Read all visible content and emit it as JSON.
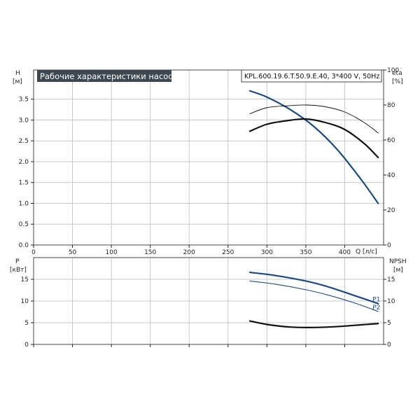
{
  "chart_data": {
    "type": "line",
    "title": "Рабочие характеристики насоса",
    "model": "KPL.600.19.6.T.50.9.E.40, 3*400 V, 50Hz",
    "colors": {
      "head": "#1a4a86",
      "eff": "#111111",
      "power": "#1a4a86",
      "npsh": "#111111",
      "title_bg": "#3c4750"
    },
    "top": {
      "left_axis": {
        "label": "H",
        "unit": "[м]",
        "range": [
          0,
          4.2
        ],
        "ticks": [
          0,
          0.5,
          1.0,
          1.5,
          2.0,
          2.5,
          3.0,
          3.5
        ],
        "tick_labels": [
          "0.0",
          "0.5",
          "1.0",
          "1.5",
          "2.0",
          "2.5",
          "3.0",
          "3.5"
        ]
      },
      "right_axis": {
        "label": "eta",
        "unit": "[%]",
        "range": [
          0,
          100
        ],
        "ticks": [
          0,
          20,
          40,
          60,
          80,
          100
        ],
        "tick_labels": [
          "0",
          "20",
          "40",
          "60",
          "80",
          "100"
        ]
      },
      "x_axis": {
        "label": "Q [л/с]",
        "range": [
          0,
          450
        ],
        "ticks": [
          0,
          50,
          100,
          150,
          200,
          250,
          300,
          350,
          400
        ],
        "tick_labels": [
          "0",
          "50",
          "100",
          "150",
          "200",
          "250",
          "300",
          "350",
          "400"
        ]
      },
      "series": [
        {
          "key": "head",
          "axis": "left",
          "width": 2.2,
          "x": [
            278,
            300,
            330,
            360,
            390,
            420,
            443
          ],
          "y": [
            3.7,
            3.55,
            3.25,
            2.85,
            2.3,
            1.6,
            1.0
          ]
        },
        {
          "key": "eff",
          "axis": "right",
          "width": 0.9,
          "x": [
            278,
            300,
            325,
            350,
            375,
            400,
            425,
            443
          ],
          "y": [
            75,
            78.5,
            79.5,
            80,
            79,
            76,
            70,
            64
          ]
        },
        {
          "key": "eff",
          "axis": "right",
          "width": 2.2,
          "x": [
            278,
            300,
            325,
            350,
            375,
            400,
            425,
            443
          ],
          "y": [
            65,
            69,
            71,
            72,
            70,
            66,
            58,
            50
          ]
        }
      ]
    },
    "bottom": {
      "left_axis": {
        "label": "P",
        "unit": "[кВт]",
        "range": [
          0,
          20
        ],
        "ticks": [
          0,
          5,
          10,
          15
        ],
        "tick_labels": [
          "0",
          "5",
          "10",
          "15"
        ]
      },
      "right_axis": {
        "label": "NPSH",
        "unit": "[м]",
        "range": [
          0,
          20
        ],
        "ticks": [
          0,
          5,
          10,
          15
        ],
        "tick_labels": [
          "0",
          "5",
          "10",
          "15"
        ]
      },
      "x_axis": {
        "range": [
          0,
          450
        ]
      },
      "series": [
        {
          "key": "power",
          "name": "P1",
          "axis": "left",
          "width": 2.2,
          "x": [
            278,
            310,
            350,
            380,
            410,
            443
          ],
          "y": [
            16.6,
            15.9,
            14.6,
            13.2,
            11.4,
            9.4
          ]
        },
        {
          "key": "power",
          "name": "P2",
          "axis": "left",
          "width": 1.1,
          "x": [
            278,
            310,
            350,
            380,
            410,
            443
          ],
          "y": [
            14.6,
            13.9,
            12.6,
            11.3,
            9.7,
            7.6
          ]
        },
        {
          "key": "npsh",
          "axis": "right",
          "width": 2.2,
          "x": [
            278,
            300,
            330,
            360,
            390,
            420,
            443
          ],
          "y": [
            5.4,
            4.6,
            4.0,
            3.9,
            4.1,
            4.5,
            4.8
          ]
        }
      ]
    }
  }
}
